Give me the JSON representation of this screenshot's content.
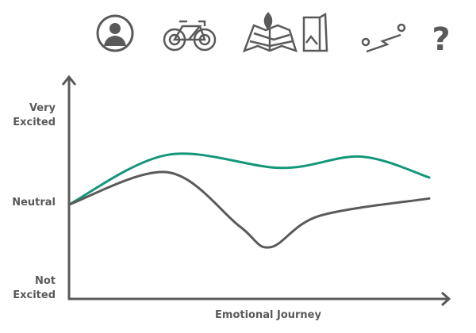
{
  "icons": [
    "person-icon",
    "bicycle-icon",
    "map-pin-icon",
    "brochure-icon",
    "route-icon",
    "question-mark-icon"
  ],
  "chart_data": {
    "type": "line",
    "title": "",
    "xlabel": "Emotional Journey",
    "ylabel": "",
    "y_tick_labels": [
      {
        "value": 1,
        "line1": "Very",
        "line2": "Excited"
      },
      {
        "value": 0,
        "line1": "Neutral",
        "line2": ""
      },
      {
        "value": -1,
        "line1": "Not",
        "line2": "Excited"
      }
    ],
    "xlim": [
      0,
      100
    ],
    "ylim": [
      -1,
      1
    ],
    "grid": false,
    "series": [
      {
        "color": "#14977a",
        "x": [
          0,
          26,
          56,
          77,
          95
        ],
        "y": [
          0,
          0.57,
          0.42,
          0.55,
          0.31
        ]
      },
      {
        "color": "#5a5a5a",
        "x": [
          0,
          26,
          45,
          53,
          66,
          95
        ],
        "y": [
          0,
          0.37,
          -0.25,
          -0.49,
          -0.13,
          0.07
        ]
      }
    ]
  }
}
